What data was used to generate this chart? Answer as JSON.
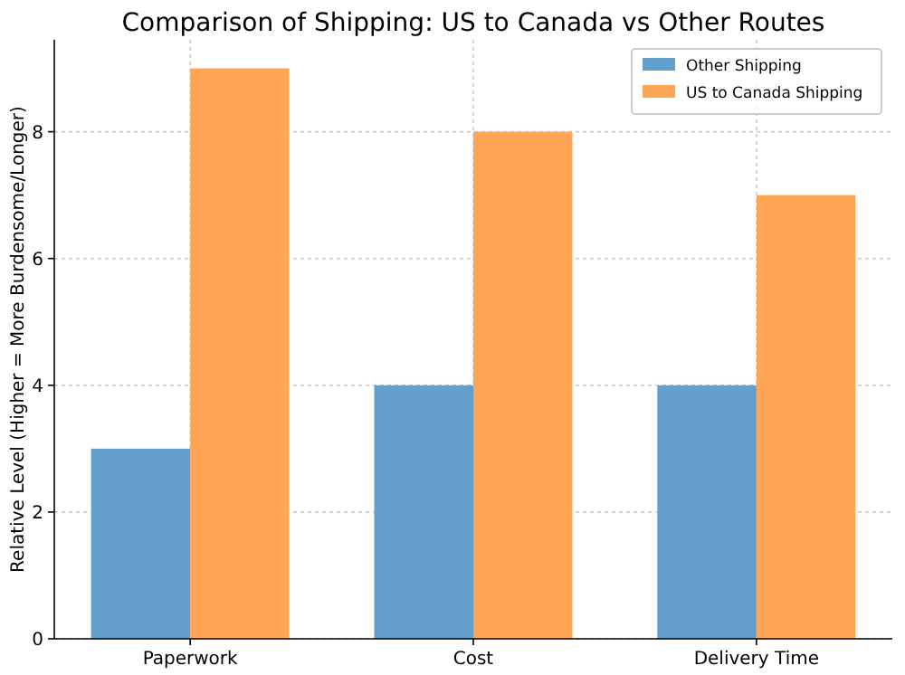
{
  "chart_data": {
    "type": "bar",
    "title": "Comparison of Shipping: US to Canada vs Other Routes",
    "ylabel": "Relative Level (Higher = More Burdensome/Longer)",
    "categories": [
      "Paperwork",
      "Cost",
      "Delivery Time"
    ],
    "series": [
      {
        "name": "Other Shipping",
        "color": "#629fca",
        "values": [
          3,
          4,
          4
        ]
      },
      {
        "name": "US to Canada Shipping",
        "color": "#ffa556",
        "values": [
          9,
          8,
          7
        ]
      }
    ],
    "ylim": [
      0,
      9.45
    ],
    "yticks": [
      0,
      2,
      4,
      6,
      8
    ],
    "grid": true,
    "legend": "top right"
  }
}
